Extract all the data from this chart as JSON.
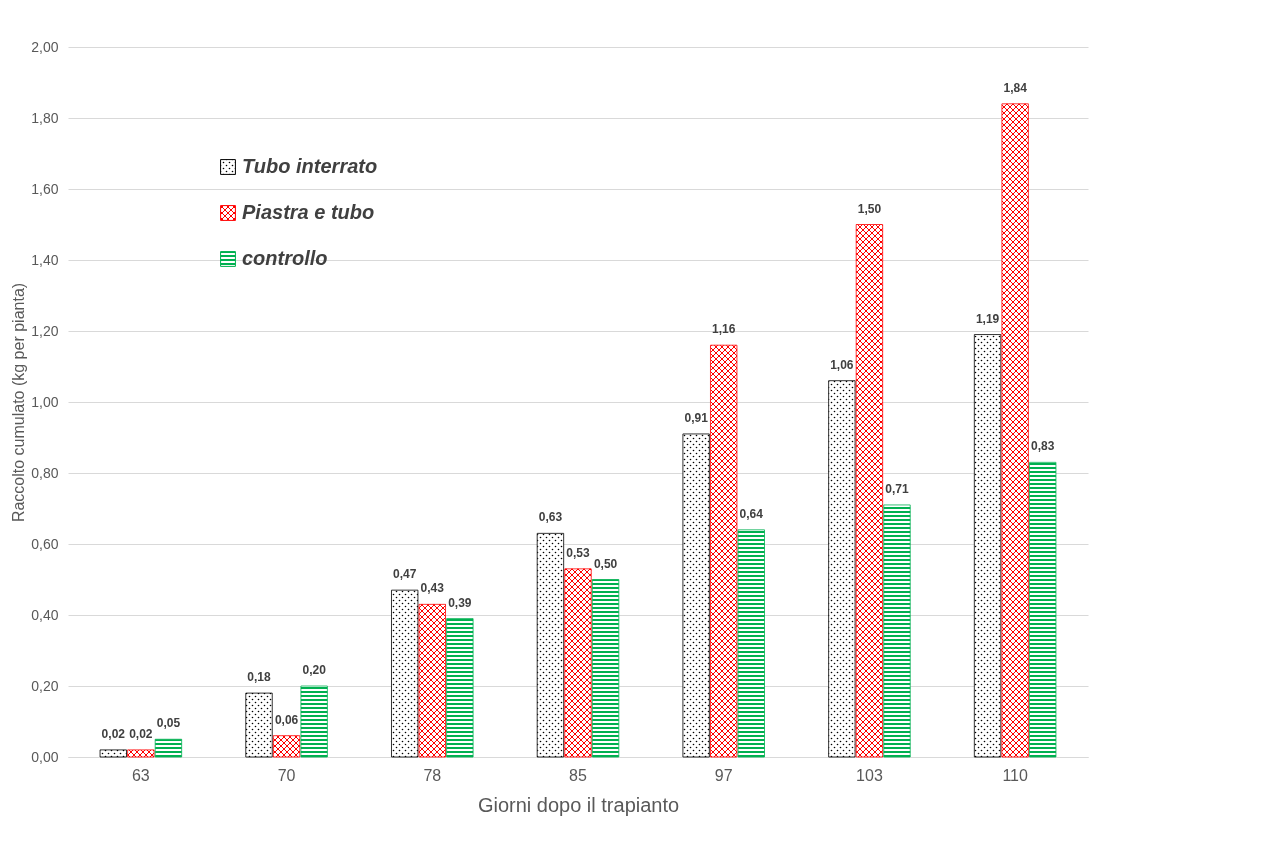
{
  "chart_data": {
    "type": "bar",
    "xlabel": "Giorni dopo il trapianto",
    "ylabel": "Raccolto cumulato (kg per pianta)",
    "categories": [
      "63",
      "70",
      "78",
      "85",
      "97",
      "103",
      "110"
    ],
    "series": [
      {
        "name": "Tubo interrato",
        "color": "#000000",
        "values": [
          0.02,
          0.18,
          0.47,
          0.63,
          0.91,
          1.06,
          1.19
        ],
        "value_labels": [
          "0,02",
          "0,18",
          "0,47",
          "0,63",
          "0,91",
          "1,06",
          "1,19"
        ]
      },
      {
        "name": "Piastra e tubo",
        "color": "#ff0000",
        "values": [
          0.02,
          0.06,
          0.43,
          0.53,
          1.16,
          1.5,
          1.84
        ],
        "value_labels": [
          "0,02",
          "0,06",
          "0,43",
          "0,53",
          "1,16",
          "1,50",
          "1,84"
        ]
      },
      {
        "name": "controllo",
        "color": "#00b050",
        "values": [
          0.05,
          0.2,
          0.39,
          0.5,
          0.64,
          0.71,
          0.83
        ],
        "value_labels": [
          "0,05",
          "0,20",
          "0,39",
          "0,50",
          "0,64",
          "0,71",
          "0,83"
        ]
      }
    ],
    "ylim": [
      0,
      2
    ],
    "yticks": [
      {
        "value": 0,
        "label": "0,00"
      },
      {
        "value": 0.2,
        "label": "0,20"
      },
      {
        "value": 0.4,
        "label": "0,40"
      },
      {
        "value": 0.6,
        "label": "0,60"
      },
      {
        "value": 0.8,
        "label": "0,80"
      },
      {
        "value": 1,
        "label": "1,00"
      },
      {
        "value": 1.2,
        "label": "1,20"
      },
      {
        "value": 1.4,
        "label": "1,40"
      },
      {
        "value": 1.6,
        "label": "1,60"
      },
      {
        "value": 1.8,
        "label": "1,80"
      },
      {
        "value": 2,
        "label": "2,00"
      }
    ],
    "grid": "y",
    "legend": "top left"
  }
}
